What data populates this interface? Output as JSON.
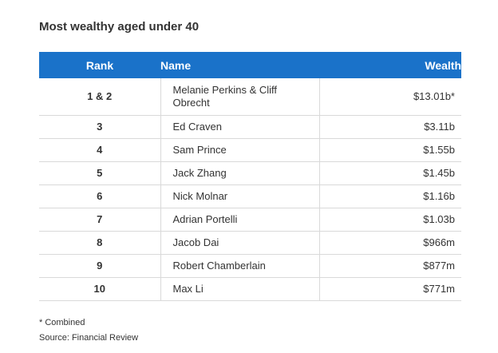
{
  "title": "Most wealthy aged under 40",
  "table": {
    "headers": {
      "rank": "Rank",
      "name": "Name",
      "wealth": "Wealth"
    },
    "rows": [
      {
        "rank": "1 & 2",
        "name": "Melanie Perkins & Cliff Obrecht",
        "wealth": "$13.01b*"
      },
      {
        "rank": "3",
        "name": "Ed Craven",
        "wealth": "$3.11b"
      },
      {
        "rank": "4",
        "name": "Sam Prince",
        "wealth": "$1.55b"
      },
      {
        "rank": "5",
        "name": "Jack Zhang",
        "wealth": "$1.45b"
      },
      {
        "rank": "6",
        "name": "Nick Molnar",
        "wealth": "$1.16b"
      },
      {
        "rank": "7",
        "name": "Adrian Portelli",
        "wealth": "$1.03b"
      },
      {
        "rank": "8",
        "name": "Jacob Dai",
        "wealth": "$966m"
      },
      {
        "rank": "9",
        "name": "Robert Chamberlain",
        "wealth": "$877m"
      },
      {
        "rank": "10",
        "name": "Max Li",
        "wealth": "$771m"
      }
    ]
  },
  "notes": {
    "footnote": "* Combined",
    "source": "Source: Financial Review"
  },
  "colors": {
    "header_background": "#1a72c9",
    "header_text": "#ffffff",
    "row_divider": "#d9d9d9",
    "text": "#333333"
  }
}
